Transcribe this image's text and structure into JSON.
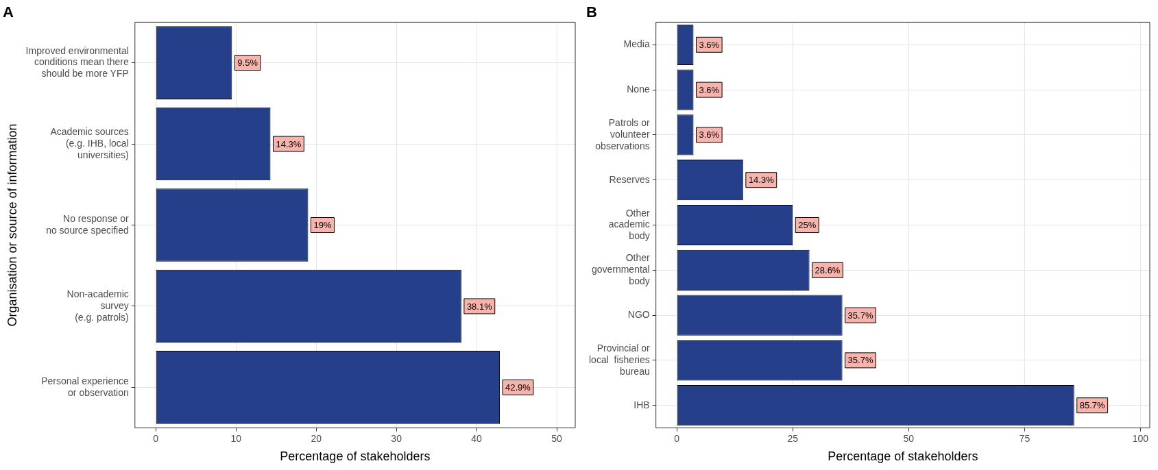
{
  "chart_data": [
    {
      "type": "bar",
      "orientation": "horizontal",
      "title": "A",
      "xlabel": "Percentage of stakeholders",
      "ylabel": "Organisation or source of information",
      "categories": [
        "Improved environmental\nconditions mean there\nshould be more YFP",
        "Academic sources\n(e.g. IHB, local\nuniversities)",
        "No response or\nno source specified",
        "Non-academic\nsurvey\n(e.g. patrols)",
        "Personal experience\nor observation"
      ],
      "values": [
        9.5,
        14.3,
        19,
        38.1,
        42.9
      ],
      "value_labels": [
        "9.5%",
        "14.3%",
        "19%",
        "38.1%",
        "42.9%"
      ],
      "color": "#253f8a",
      "xlim": [
        -2.6,
        52.3
      ],
      "xticks": [
        0,
        10,
        20,
        30,
        40,
        50
      ],
      "grid": true,
      "legend": false
    },
    {
      "type": "bar",
      "orientation": "horizontal",
      "title": "B",
      "xlabel": "Percentage of stakeholders",
      "categories": [
        "Media",
        "None",
        "Patrols or\nvolunteer\nobservations",
        "Reserves",
        "Other\nacademic\nbody",
        "Other\ngovernmental\nbody",
        "NGO",
        "Provincial or\nlocal  fisheries\nbureau",
        "IHB"
      ],
      "values": [
        3.6,
        3.6,
        3.6,
        14.3,
        25,
        28.6,
        35.7,
        35.7,
        85.7
      ],
      "value_labels": [
        "3.6%",
        "3.6%",
        "3.6%",
        "14.3%",
        "25%",
        "28.6%",
        "35.7%",
        "35.7%",
        "85.7%"
      ],
      "color": "#253f8a",
      "xlim": [
        -4.5,
        102
      ],
      "xticks": [
        0,
        25,
        50,
        75,
        100
      ],
      "grid": true,
      "legend": false
    }
  ]
}
